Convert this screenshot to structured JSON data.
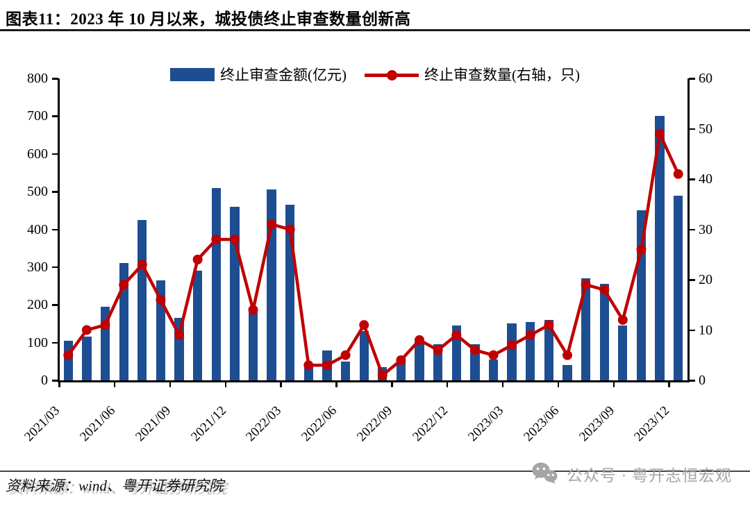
{
  "page": {
    "title": "图表11：2023 年 10 月以来，城投债终止审查数量创新高"
  },
  "chart_data": {
    "type": "bar+line",
    "title": "图表11：2023 年 10 月以来，城投债终止审查数量创新高",
    "categories": [
      "2021/03",
      "2021/04",
      "2021/05",
      "2021/06",
      "2021/07",
      "2021/08",
      "2021/09",
      "2021/10",
      "2021/11",
      "2021/12",
      "2022/01",
      "2022/02",
      "2022/03",
      "2022/04",
      "2022/05",
      "2022/06",
      "2022/07",
      "2022/08",
      "2022/09",
      "2022/10",
      "2022/11",
      "2022/12",
      "2023/01",
      "2023/02",
      "2023/03",
      "2023/04",
      "2023/05",
      "2023/06",
      "2023/07",
      "2023/08",
      "2023/09",
      "2023/10",
      "2023/11",
      "2023/12"
    ],
    "x_tick_labels": [
      "2021/03",
      "2021/06",
      "2021/09",
      "2021/12",
      "2022/03",
      "2022/06",
      "2022/09",
      "2022/12",
      "2023/03",
      "2023/06",
      "2023/09",
      "2023/12"
    ],
    "series": [
      {
        "name": "终止审查金额(亿元)",
        "type": "bar",
        "axis": "left",
        "color": "#1e4e92",
        "values": [
          105,
          115,
          195,
          310,
          425,
          265,
          165,
          290,
          510,
          460,
          180,
          505,
          465,
          40,
          80,
          50,
          130,
          35,
          55,
          110,
          95,
          145,
          95,
          55,
          150,
          155,
          160,
          40,
          270,
          255,
          145,
          450,
          700,
          490
        ]
      },
      {
        "name": "终止审查数量(右轴，只)",
        "type": "line",
        "axis": "right",
        "color": "#c00000",
        "values": [
          5,
          10,
          11,
          19,
          23,
          16,
          9,
          24,
          28,
          28,
          14,
          31,
          30,
          3,
          3,
          5,
          11,
          1,
          4,
          8,
          6,
          9,
          6,
          5,
          7,
          9,
          11,
          5,
          19,
          18,
          12,
          26,
          49,
          41
        ]
      }
    ],
    "left_axis": {
      "min": 0,
      "max": 800,
      "step": 100
    },
    "right_axis": {
      "min": 0,
      "max": 60,
      "step": 10
    },
    "legend_position": "top-center",
    "grid": false
  },
  "footer": {
    "source": "资料来源：wind、粤开证券研究院",
    "wechat": "公众号 · 粤开志恒宏观"
  }
}
